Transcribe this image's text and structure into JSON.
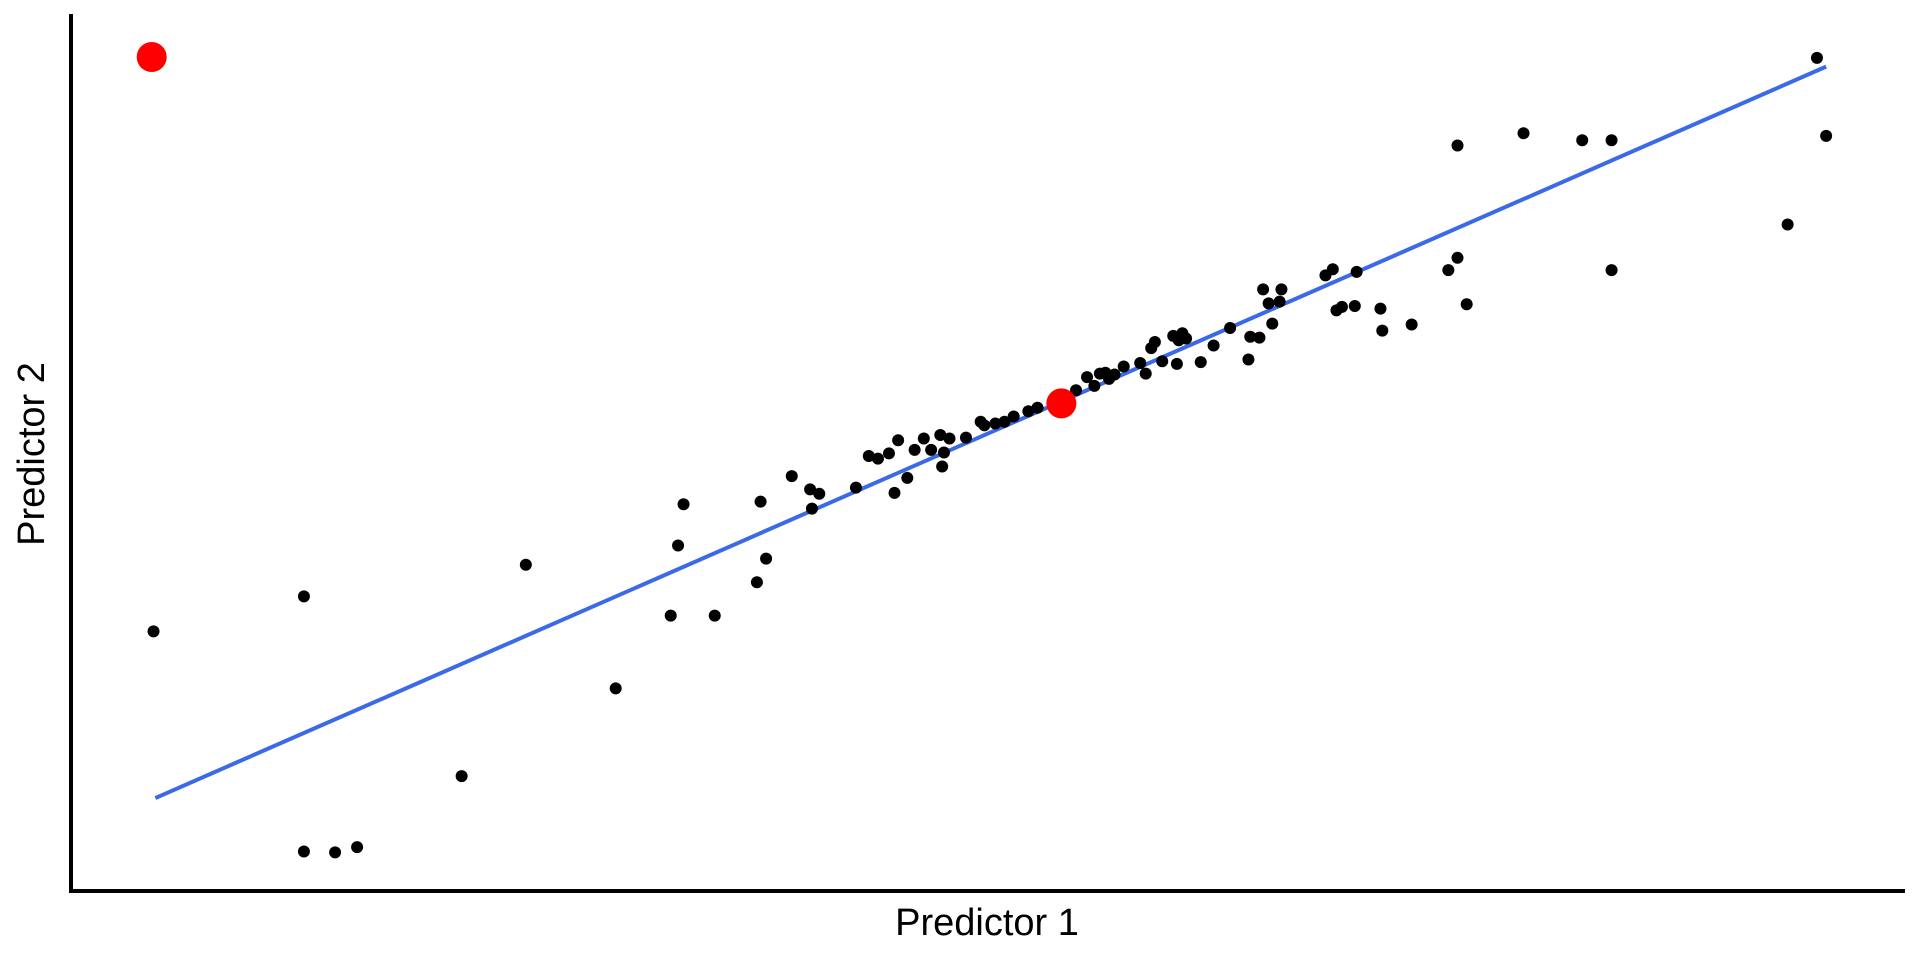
{
  "chart_data": {
    "type": "scatter",
    "xlabel": "Predictor 1",
    "ylabel": "Predictor 2",
    "xlim": [
      0,
      100
    ],
    "ylim": [
      0,
      100
    ],
    "grid": false,
    "legend": "none",
    "colors": {
      "points": "#000000",
      "highlight": "#ff0000",
      "fit_line": "#3b6ae8",
      "axes": "#000000"
    },
    "series": [
      {
        "values": [
          {
            "x": 4.5,
            "y": 29.6
          },
          {
            "x": 12.7,
            "y": 33.6
          },
          {
            "x": 12.7,
            "y": 4.5
          },
          {
            "x": 14.4,
            "y": 4.4
          },
          {
            "x": 15.6,
            "y": 5.0
          },
          {
            "x": 21.3,
            "y": 13.1
          },
          {
            "x": 24.8,
            "y": 37.2
          },
          {
            "x": 29.7,
            "y": 23.1
          },
          {
            "x": 32.7,
            "y": 31.4
          },
          {
            "x": 33.1,
            "y": 39.4
          },
          {
            "x": 33.4,
            "y": 44.1
          },
          {
            "x": 35.1,
            "y": 31.4
          },
          {
            "x": 37.4,
            "y": 35.2
          },
          {
            "x": 37.6,
            "y": 44.4
          },
          {
            "x": 37.9,
            "y": 37.9
          },
          {
            "x": 39.3,
            "y": 47.3
          },
          {
            "x": 40.3,
            "y": 45.8
          },
          {
            "x": 40.4,
            "y": 43.6
          },
          {
            "x": 40.8,
            "y": 45.3
          },
          {
            "x": 42.8,
            "y": 46.0
          },
          {
            "x": 43.5,
            "y": 49.6
          },
          {
            "x": 44.0,
            "y": 49.3
          },
          {
            "x": 44.6,
            "y": 49.9
          },
          {
            "x": 44.9,
            "y": 45.4
          },
          {
            "x": 45.1,
            "y": 51.4
          },
          {
            "x": 45.6,
            "y": 47.1
          },
          {
            "x": 46.0,
            "y": 50.3
          },
          {
            "x": 46.5,
            "y": 51.6
          },
          {
            "x": 46.9,
            "y": 50.3
          },
          {
            "x": 47.4,
            "y": 52.0
          },
          {
            "x": 47.5,
            "y": 48.4
          },
          {
            "x": 47.6,
            "y": 50.0
          },
          {
            "x": 47.9,
            "y": 51.6
          },
          {
            "x": 48.8,
            "y": 51.7
          },
          {
            "x": 49.6,
            "y": 53.5
          },
          {
            "x": 49.8,
            "y": 53.1
          },
          {
            "x": 50.4,
            "y": 53.3
          },
          {
            "x": 50.9,
            "y": 53.5
          },
          {
            "x": 51.4,
            "y": 54.1
          },
          {
            "x": 52.2,
            "y": 54.7
          },
          {
            "x": 52.7,
            "y": 55.1
          },
          {
            "x": 54.8,
            "y": 57.1
          },
          {
            "x": 55.4,
            "y": 58.6
          },
          {
            "x": 55.8,
            "y": 57.6
          },
          {
            "x": 56.1,
            "y": 59.0
          },
          {
            "x": 56.4,
            "y": 59.1
          },
          {
            "x": 56.6,
            "y": 58.4
          },
          {
            "x": 56.9,
            "y": 58.9
          },
          {
            "x": 57.4,
            "y": 59.8
          },
          {
            "x": 58.3,
            "y": 60.2
          },
          {
            "x": 58.6,
            "y": 59.0
          },
          {
            "x": 58.9,
            "y": 61.9
          },
          {
            "x": 59.1,
            "y": 62.6
          },
          {
            "x": 59.5,
            "y": 60.4
          },
          {
            "x": 60.1,
            "y": 63.3
          },
          {
            "x": 60.3,
            "y": 60.1
          },
          {
            "x": 60.4,
            "y": 62.8
          },
          {
            "x": 60.6,
            "y": 63.6
          },
          {
            "x": 60.8,
            "y": 63.0
          },
          {
            "x": 61.6,
            "y": 60.3
          },
          {
            "x": 62.3,
            "y": 62.2
          },
          {
            "x": 63.2,
            "y": 64.2
          },
          {
            "x": 64.2,
            "y": 60.6
          },
          {
            "x": 64.3,
            "y": 63.2
          },
          {
            "x": 64.8,
            "y": 63.1
          },
          {
            "x": 65.0,
            "y": 68.6
          },
          {
            "x": 65.3,
            "y": 67.0
          },
          {
            "x": 65.5,
            "y": 64.7
          },
          {
            "x": 65.9,
            "y": 67.2
          },
          {
            "x": 66.0,
            "y": 68.6
          },
          {
            "x": 68.4,
            "y": 70.2
          },
          {
            "x": 68.8,
            "y": 70.9
          },
          {
            "x": 69.0,
            "y": 66.2
          },
          {
            "x": 69.3,
            "y": 66.6
          },
          {
            "x": 70.0,
            "y": 66.7
          },
          {
            "x": 70.1,
            "y": 70.6
          },
          {
            "x": 71.4,
            "y": 66.4
          },
          {
            "x": 71.5,
            "y": 63.9
          },
          {
            "x": 73.1,
            "y": 64.6
          },
          {
            "x": 75.1,
            "y": 70.8
          },
          {
            "x": 75.6,
            "y": 85.0
          },
          {
            "x": 75.6,
            "y": 72.2
          },
          {
            "x": 76.1,
            "y": 66.9
          },
          {
            "x": 79.2,
            "y": 86.4
          },
          {
            "x": 82.4,
            "y": 85.6
          },
          {
            "x": 84.0,
            "y": 85.6
          },
          {
            "x": 84.0,
            "y": 70.8
          },
          {
            "x": 93.6,
            "y": 76.0
          },
          {
            "x": 95.2,
            "y": 95.0
          },
          {
            "x": 95.7,
            "y": 86.1
          }
        ]
      },
      {
        "values": [
          {
            "x": 4.4,
            "y": 95.1
          },
          {
            "x": 54.0,
            "y": 55.6
          }
        ]
      }
    ],
    "fit_line": {
      "x": [
        4.6,
        95.7
      ],
      "y": [
        10.6,
        94.0
      ]
    }
  }
}
